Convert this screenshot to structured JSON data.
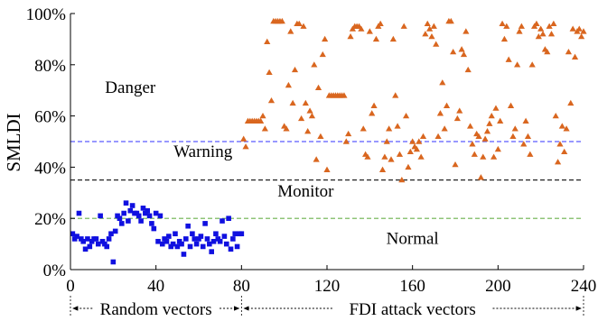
{
  "chart_data": {
    "type": "scatter",
    "ylabel": "SMLDI",
    "xlim": [
      0,
      240
    ],
    "ylim": [
      0,
      100
    ],
    "x_ticks": [
      0,
      40,
      80,
      120,
      160,
      200,
      240
    ],
    "y_ticks": [
      0,
      20,
      40,
      60,
      80,
      100
    ],
    "y_tick_labels": [
      "0%",
      "20%",
      "40%",
      "60%",
      "80%",
      "100%"
    ],
    "grid": false,
    "thresholds": [
      {
        "value": 50,
        "color": "#5b5bff"
      },
      {
        "value": 35,
        "color": "#222222"
      },
      {
        "value": 20,
        "color": "#6ab04c"
      }
    ],
    "zone_labels": [
      {
        "text": "Danger",
        "x": 28,
        "y": 69
      },
      {
        "text": "Warning",
        "x": 62,
        "y": 44
      },
      {
        "text": "Monitor",
        "x": 110,
        "y": 28.5
      },
      {
        "text": "Normal",
        "x": 160,
        "y": 10
      }
    ],
    "ranges": [
      {
        "label": "Random vectors",
        "start": 0,
        "end": 80
      },
      {
        "label": "FDI attack vectors",
        "start": 80,
        "end": 240
      }
    ],
    "series": [
      {
        "marker": "square",
        "color": "#1010e0",
        "x": [
          1,
          2,
          3,
          4,
          5,
          6,
          7,
          8,
          9,
          10,
          11,
          12,
          13,
          14,
          15,
          16,
          17,
          18,
          19,
          20,
          21,
          22,
          23,
          24,
          25,
          26,
          27,
          28,
          29,
          30,
          31,
          32,
          33,
          34,
          35,
          36,
          37,
          38,
          39,
          40,
          41,
          42,
          43,
          44,
          45,
          46,
          47,
          48,
          49,
          50,
          51,
          52,
          53,
          54,
          55,
          56,
          57,
          58,
          59,
          60,
          61,
          62,
          63,
          64,
          65,
          66,
          67,
          68,
          69,
          70,
          71,
          72,
          73,
          74,
          75,
          76,
          77,
          78,
          79,
          80
        ],
        "y": [
          14,
          12,
          13,
          22,
          12,
          11,
          8,
          12,
          9,
          11,
          12,
          12,
          10,
          21,
          11,
          10,
          9,
          12,
          14,
          3,
          15,
          21,
          20,
          18,
          22,
          26,
          19,
          23,
          25,
          22,
          22,
          21,
          19,
          24,
          22,
          23,
          21,
          18,
          16,
          22,
          11,
          21,
          10,
          12,
          11,
          13,
          9,
          10,
          14,
          9,
          11,
          10,
          6,
          12,
          17,
          9,
          14,
          12,
          10,
          12,
          13,
          9,
          18,
          12,
          10,
          7,
          11,
          14,
          12,
          11,
          19,
          13,
          10,
          20,
          8,
          12,
          14,
          9,
          14,
          14
        ]
      },
      {
        "marker": "triangle",
        "color": "#d9661f",
        "x": [
          81,
          82,
          83,
          84,
          85,
          86,
          87,
          88,
          89,
          90,
          91,
          92,
          93,
          94,
          95,
          96,
          97,
          98,
          99,
          100,
          101,
          102,
          103,
          104,
          105,
          106,
          107,
          108,
          109,
          110,
          111,
          112,
          113,
          114,
          115,
          116,
          117,
          118,
          119,
          120,
          121,
          122,
          123,
          124,
          125,
          126,
          127,
          128,
          129,
          130,
          131,
          132,
          133,
          134,
          135,
          136,
          137,
          138,
          139,
          140,
          141,
          142,
          143,
          144,
          145,
          146,
          147,
          148,
          149,
          150,
          151,
          152,
          153,
          154,
          155,
          156,
          157,
          158,
          159,
          160,
          161,
          162,
          163,
          164,
          165,
          166,
          167,
          168,
          169,
          170,
          171,
          172,
          173,
          174,
          175,
          176,
          177,
          178,
          179,
          180,
          181,
          182,
          183,
          184,
          185,
          186,
          187,
          188,
          189,
          190,
          191,
          192,
          193,
          194,
          195,
          196,
          197,
          198,
          199,
          200,
          201,
          202,
          203,
          204,
          205,
          206,
          207,
          208,
          209,
          210,
          211,
          212,
          213,
          214,
          215,
          216,
          217,
          218,
          219,
          220,
          221,
          222,
          223,
          224,
          225,
          226,
          227,
          228,
          229,
          230,
          231,
          232,
          233,
          234,
          235,
          236,
          237,
          238,
          239,
          240
        ],
        "y": [
          51,
          48,
          58,
          58,
          58,
          58,
          58,
          58,
          58,
          60,
          55,
          89,
          77,
          66,
          97,
          97,
          97,
          97,
          97,
          56,
          55,
          72,
          93,
          65,
          78,
          96,
          96,
          59,
          95,
          65,
          54,
          62,
          60,
          80,
          43,
          71,
          52,
          84,
          90,
          39,
          68,
          68,
          68,
          68,
          68,
          68,
          68,
          68,
          50,
          53,
          91,
          94,
          95,
          95,
          95,
          94,
          55,
          45,
          44,
          93,
          61,
          64,
          90,
          95,
          96,
          39,
          44,
          50,
          55,
          43,
          90,
          68,
          56,
          45,
          35,
          95,
          60,
          40,
          46,
          50,
          48,
          47,
          50,
          44,
          52,
          92,
          96,
          94,
          91,
          95,
          88,
          52,
          61,
          73,
          55,
          64,
          97,
          97,
          85,
          41,
          59,
          62,
          86,
          84,
          93,
          78,
          56,
          49,
          45,
          53,
          52,
          36,
          44,
          51,
          54,
          57,
          60,
          44,
          63,
          47,
          58,
          96,
          90,
          95,
          82,
          64,
          52,
          55,
          80,
          93,
          95,
          49,
          58,
          52,
          45,
          80,
          95,
          96,
          91,
          94,
          92,
          86,
          85,
          95,
          92,
          96,
          60,
          42,
          49,
          56,
          46,
          55,
          85,
          65,
          94,
          83,
          93,
          94,
          91,
          93
        ]
      }
    ]
  }
}
